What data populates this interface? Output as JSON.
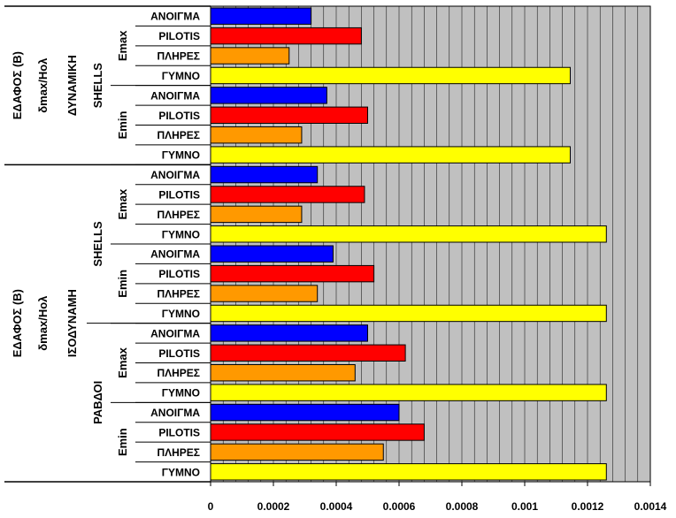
{
  "chart_data": {
    "type": "bar",
    "orientation": "horizontal",
    "xlim": [
      0,
      0.0014
    ],
    "x_ticks": [
      "0",
      "0.0002",
      "0.0004",
      "0.0006",
      "0.0008",
      "0.001",
      "0.0012",
      "0.0014"
    ],
    "grid": "vertical minor lines",
    "legend": "none",
    "colors": {
      "ΑΝΟΙΓΜΑ": "#0000ff",
      "PILOTIS": "#ff0000",
      "ΠΛΗΡΕΣ": "#ff9900",
      "ΓΥΜΝΟ": "#ffff00",
      "plot_background": "#c0c0c0"
    },
    "categories": [
      "ΑΝΟΙΓΜΑ",
      "PILOTIS",
      "ΠΛΗΡΕΣ",
      "ΓΥΜΝΟ",
      "ΑΝΟΙΓΜΑ",
      "PILOTIS",
      "ΠΛΗΡΕΣ",
      "ΓΥΜΝΟ",
      "ΑΝΟΙΓΜΑ",
      "PILOTIS",
      "ΠΛΗΡΕΣ",
      "ΓΥΜΝΟ",
      "ΑΝΟΙΓΜΑ",
      "PILOTIS",
      "ΠΛΗΡΕΣ",
      "ΓΥΜΝΟ",
      "ΑΝΟΙΓΜΑ",
      "PILOTIS",
      "ΠΛΗΡΕΣ",
      "ΓΥΜΝΟ",
      "ΑΝΟΙΓΜΑ",
      "PILOTIS",
      "ΠΛΗΡΕΣ",
      "ΓΥΜΝΟ"
    ],
    "values": [
      0.00032,
      0.00048,
      0.00025,
      0.001145,
      0.00037,
      0.0005,
      0.00029,
      0.001145,
      0.00034,
      0.00049,
      0.00029,
      0.00126,
      0.00039,
      0.00052,
      0.00034,
      0.00126,
      0.0005,
      0.00062,
      0.00046,
      0.00126,
      0.0006,
      0.00068,
      0.00055,
      0.00126
    ],
    "group_labels": {
      "e_groups": [
        "Emax",
        "Emin",
        "Emax",
        "Emin",
        "Emax",
        "Emin"
      ],
      "type_groups": [
        "SHELLS",
        "SHELLS",
        "ΡΑΒΔΟΙ"
      ],
      "analysis_groups": [
        {
          "line1": "ΕΔΑΦΟΣ (Β)",
          "line2": "δmax/Hολ",
          "line3": "ΔΥΝΑΜΙΚΗ"
        },
        {
          "line1": "ΕΔΑΦΟΣ (Β)",
          "line2": "δmax/Hολ",
          "line3": "ΙΣΟΔΥΝΑΜΗ"
        }
      ]
    }
  }
}
